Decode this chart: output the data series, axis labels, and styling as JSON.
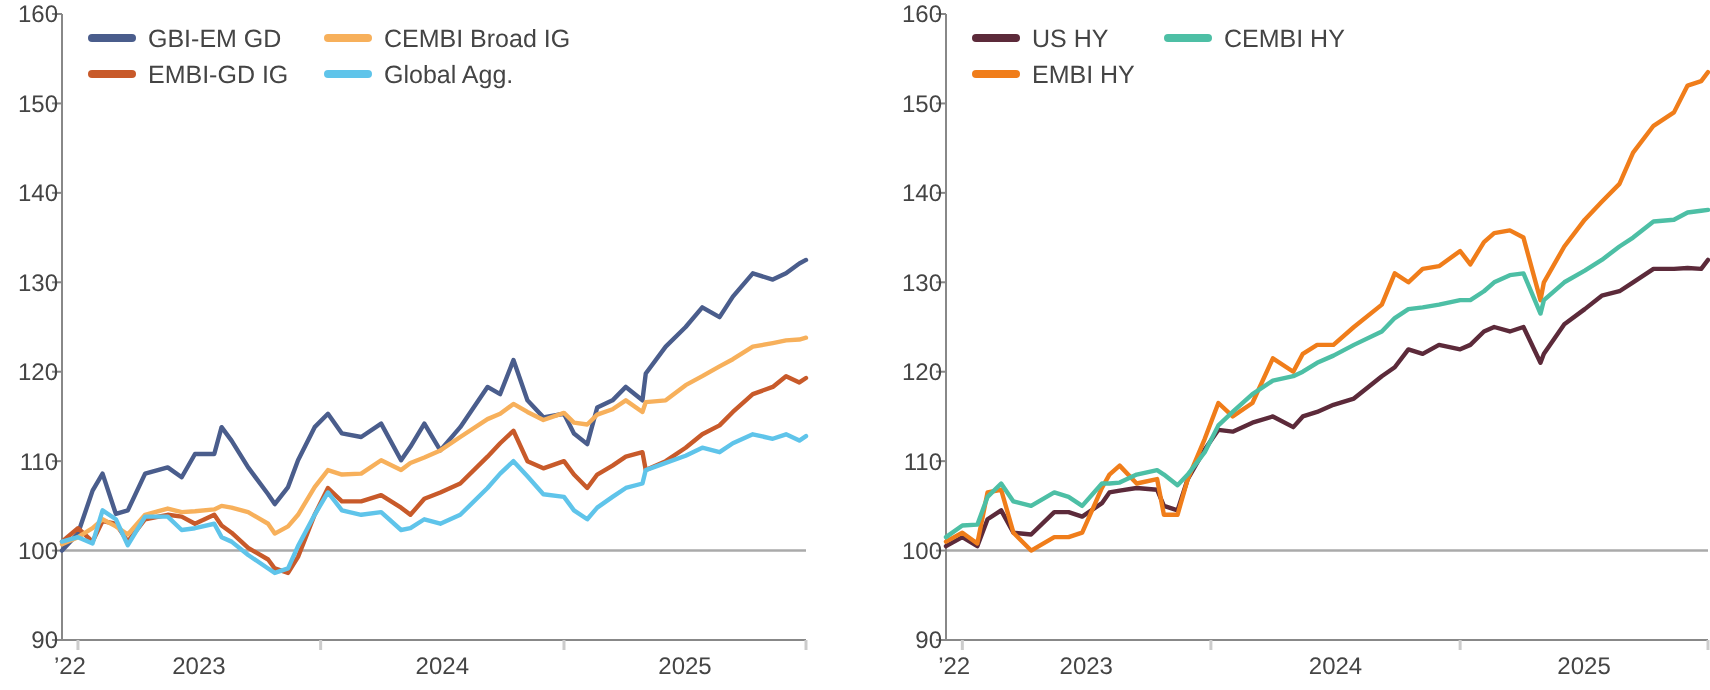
{
  "chart_data": [
    {
      "type": "line",
      "x": [
        "2022-12-08",
        "2023-01-01",
        "2023-01-23",
        "2023-02-07",
        "2023-02-27",
        "2023-03-17",
        "2023-04-12",
        "2023-05-16",
        "2023-06-06",
        "2023-06-26",
        "2023-07-25",
        "2023-08-05",
        "2023-08-20",
        "2023-09-14",
        "2023-10-14",
        "2023-10-24",
        "2023-11-13",
        "2023-11-28",
        "2023-12-23",
        "2024-01-12",
        "2024-02-02",
        "2024-03-02",
        "2024-04-01",
        "2024-05-01",
        "2024-05-15",
        "2024-06-05",
        "2024-06-29",
        "2024-07-29",
        "2024-09-08",
        "2024-09-27",
        "2024-10-17",
        "2024-11-07",
        "2024-12-01",
        "2025-01-01",
        "2025-01-16",
        "2025-02-05",
        "2025-02-20",
        "2025-03-15",
        "2025-04-04",
        "2025-04-29",
        "2025-05-04",
        "2025-06-03",
        "2025-07-03",
        "2025-07-28",
        "2025-08-23",
        "2025-09-12",
        "2025-10-12",
        "2025-11-11",
        "2025-12-01",
        "2025-12-21",
        "2025-12-31"
      ],
      "series": [
        {
          "name": "GBI-EM GD",
          "color": "#4a5d8c",
          "values": [
            100,
            101.9,
            106.7,
            108.6,
            104.1,
            104.5,
            108.6,
            109.3,
            108.2,
            110.8,
            110.8,
            113.8,
            112.3,
            109.3,
            106.3,
            105.2,
            107.1,
            110.1,
            113.8,
            115.3,
            113.1,
            112.7,
            114.2,
            110.1,
            111.6,
            114.2,
            111.2,
            113.8,
            118.3,
            117.5,
            121.3,
            116.8,
            114.9,
            115.3,
            113.1,
            111.9,
            116,
            116.8,
            118.3,
            116.8,
            119.8,
            122.8,
            125,
            127.2,
            126.1,
            128.4,
            131,
            130.3,
            131,
            132.1,
            132.5
          ]
        },
        {
          "name": "EMBI-GD IG",
          "color": "#c85a2a",
          "values": [
            101,
            102.5,
            101,
            103.3,
            103,
            101,
            103.5,
            104,
            103.8,
            103,
            104,
            102.8,
            102,
            100.3,
            99,
            98,
            97.5,
            99.3,
            104,
            107,
            105.5,
            105.5,
            106.2,
            104.8,
            104,
            105.8,
            106.5,
            107.5,
            110.5,
            112,
            113.4,
            110,
            109.2,
            110,
            108.5,
            107,
            108.5,
            109.5,
            110.5,
            111,
            109,
            110,
            111.5,
            113,
            114,
            115.5,
            117.5,
            118.3,
            119.5,
            118.8,
            119.3
          ]
        },
        {
          "name": "CEMBI Broad IG",
          "color": "#f7b05b",
          "values": [
            100.7,
            101.5,
            102.5,
            103.5,
            102.7,
            101.8,
            104,
            104.7,
            104.3,
            104.4,
            104.6,
            105,
            104.8,
            104.3,
            103,
            101.9,
            102.7,
            104,
            107.1,
            109,
            108.5,
            108.6,
            110.1,
            109,
            109.8,
            110.4,
            111.2,
            112.7,
            114.7,
            115.3,
            116.4,
            115.5,
            114.6,
            115.4,
            114.3,
            114.1,
            115.2,
            115.8,
            116.8,
            115.5,
            116.6,
            116.8,
            118.5,
            119.5,
            120.6,
            121.4,
            122.8,
            123.2,
            123.5,
            123.6,
            123.8
          ]
        },
        {
          "name": "Global Agg.",
          "color": "#5fc4ea",
          "values": [
            101,
            101.5,
            100.8,
            104.5,
            103.5,
            100.6,
            103.8,
            103.8,
            102.3,
            102.5,
            103,
            101.5,
            101,
            99.5,
            98,
            97.5,
            98,
            100.5,
            104,
            106.5,
            104.5,
            104,
            104.3,
            102.3,
            102.5,
            103.5,
            103,
            104,
            107,
            108.6,
            110,
            108.3,
            106.3,
            106,
            104.5,
            103.5,
            104.8,
            106,
            107,
            107.5,
            109,
            109.8,
            110.6,
            111.5,
            111,
            112,
            113,
            112.5,
            113,
            112.3,
            112.8
          ]
        }
      ],
      "xlim": [
        "2022-12-08",
        "2025-12-31"
      ],
      "xticks": [
        {
          "value": "2022-12-20",
          "label": "’22"
        },
        {
          "value": "2023-01-01",
          "label": null
        },
        {
          "value": "2023-07-02",
          "label": "2023"
        },
        {
          "value": "2024-01-01",
          "label": null
        },
        {
          "value": "2024-07-02",
          "label": "2024"
        },
        {
          "value": "2025-01-01",
          "label": null
        },
        {
          "value": "2025-07-02",
          "label": "2025"
        },
        {
          "value": "2025-12-31",
          "label": null
        }
      ],
      "ylim": [
        90,
        160
      ],
      "yticks": [
        90,
        100,
        110,
        120,
        130,
        140,
        150,
        160
      ],
      "ref_lines": [
        {
          "axis": "y",
          "value": 100,
          "color": "#aaaaaa"
        }
      ],
      "legend": "top left",
      "grid": false,
      "line_style": "solid",
      "marker": "none"
    },
    {
      "type": "line",
      "x": [
        "2022-12-08",
        "2023-01-01",
        "2023-01-23",
        "2023-02-07",
        "2023-02-27",
        "2023-03-17",
        "2023-04-12",
        "2023-05-16",
        "2023-06-06",
        "2023-06-26",
        "2023-07-25",
        "2023-08-05",
        "2023-08-20",
        "2023-09-14",
        "2023-10-14",
        "2023-10-24",
        "2023-11-13",
        "2023-11-28",
        "2023-12-23",
        "2024-01-12",
        "2024-02-02",
        "2024-03-02",
        "2024-04-01",
        "2024-05-01",
        "2024-05-15",
        "2024-06-05",
        "2024-06-29",
        "2024-07-29",
        "2024-09-08",
        "2024-09-27",
        "2024-10-17",
        "2024-11-07",
        "2024-12-01",
        "2025-01-01",
        "2025-01-16",
        "2025-02-05",
        "2025-02-20",
        "2025-03-15",
        "2025-04-04",
        "2025-04-29",
        "2025-05-04",
        "2025-06-03",
        "2025-07-03",
        "2025-07-28",
        "2025-08-23",
        "2025-09-12",
        "2025-10-12",
        "2025-11-11",
        "2025-12-01",
        "2025-12-21",
        "2025-12-31"
      ],
      "series": [
        {
          "name": "US HY",
          "color": "#5c2a3a",
          "values": [
            100.5,
            101.5,
            100.5,
            103.5,
            104.5,
            102,
            101.8,
            104.3,
            104.3,
            103.8,
            105.3,
            106.5,
            106.7,
            107,
            106.8,
            105,
            104.5,
            108,
            111.3,
            113.5,
            113.3,
            114.3,
            115,
            113.8,
            115,
            115.5,
            116.3,
            117,
            119.5,
            120.5,
            122.5,
            122,
            123,
            122.5,
            123,
            124.5,
            125,
            124.5,
            125,
            121,
            122,
            125.3,
            127,
            128.5,
            129,
            130,
            131.5,
            131.5,
            131.6,
            131.5,
            132.5
          ]
        },
        {
          "name": "EMBI HY",
          "color": "#f07d1a",
          "values": [
            101,
            102,
            100.8,
            106.5,
            106.8,
            102,
            100,
            101.5,
            101.5,
            102,
            107,
            108.5,
            109.5,
            107.5,
            108,
            104,
            104,
            108,
            112.5,
            116.5,
            115,
            116.5,
            121.5,
            120,
            122,
            123,
            123,
            125,
            127.5,
            131,
            130,
            131.5,
            131.8,
            133.5,
            132,
            134.5,
            135.5,
            135.8,
            135,
            128,
            130,
            134,
            137,
            139,
            141,
            144.5,
            147.5,
            149,
            152,
            152.5,
            153.5
          ]
        },
        {
          "name": "CEMBI HY",
          "color": "#4dbfa5",
          "values": [
            101.5,
            102.8,
            102.9,
            106,
            107.5,
            105.5,
            105,
            106.5,
            106,
            105,
            107.5,
            107.5,
            107.6,
            108.5,
            109,
            108.5,
            107.3,
            108.5,
            111,
            114,
            115.5,
            117.5,
            119,
            119.5,
            120,
            121,
            121.8,
            123,
            124.5,
            126,
            127,
            127.2,
            127.5,
            128,
            128,
            129,
            130,
            130.8,
            131,
            126.5,
            128,
            130,
            131.3,
            132.5,
            134,
            135,
            136.8,
            137,
            137.8,
            138,
            138.1
          ]
        }
      ],
      "xlim": [
        "2022-12-08",
        "2025-12-31"
      ],
      "xticks": [
        {
          "value": "2022-12-20",
          "label": "’22"
        },
        {
          "value": "2023-01-01",
          "label": null
        },
        {
          "value": "2023-07-02",
          "label": "2023"
        },
        {
          "value": "2024-01-01",
          "label": null
        },
        {
          "value": "2024-07-02",
          "label": "2024"
        },
        {
          "value": "2025-01-01",
          "label": null
        },
        {
          "value": "2025-07-02",
          "label": "2025"
        },
        {
          "value": "2025-12-31",
          "label": null
        }
      ],
      "ylim": [
        90,
        160
      ],
      "yticks": [
        90,
        100,
        110,
        120,
        130,
        140,
        150,
        160
      ],
      "ref_lines": [
        {
          "axis": "y",
          "value": 100,
          "color": "#aaaaaa"
        }
      ],
      "legend": "top left",
      "grid": false,
      "line_style": "solid",
      "marker": "none"
    }
  ]
}
